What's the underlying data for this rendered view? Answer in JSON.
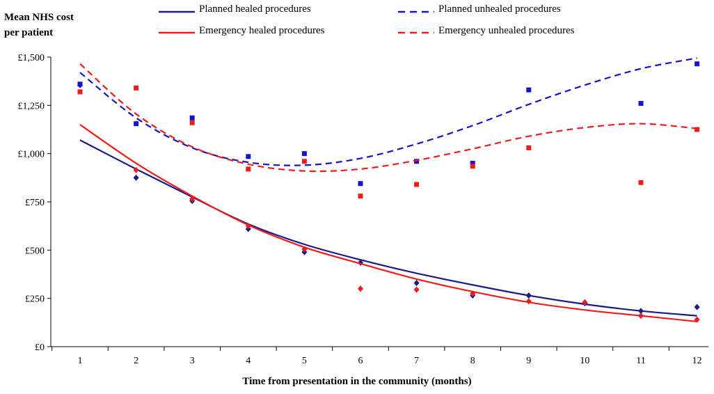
{
  "chart_data": {
    "type": "line",
    "ylabel": "Mean NHS cost\nper patient",
    "xlabel": "Time from presentation in the community (months)",
    "xlim": [
      1,
      12
    ],
    "ylim": [
      0,
      1500
    ],
    "x_ticks": [
      "1",
      "2",
      "3",
      "4",
      "5",
      "6",
      "7",
      "8",
      "9",
      "10",
      "11",
      "12"
    ],
    "y_ticks": [
      {
        "value": 0,
        "label": "£0"
      },
      {
        "value": 250,
        "label": "£250"
      },
      {
        "value": 500,
        "label": "£500"
      },
      {
        "value": 750,
        "label": "£750"
      },
      {
        "value": 1000,
        "label": "£1,000"
      },
      {
        "value": 1250,
        "label": "£1,250"
      },
      {
        "value": 1500,
        "label": "£1,500"
      }
    ],
    "grid": false,
    "legend": "top",
    "x": [
      1,
      2,
      3,
      4,
      5,
      6,
      7,
      8,
      9,
      10,
      11,
      12
    ],
    "series": [
      {
        "name": "Planned healed procedures",
        "color": "#1a1a8c",
        "line_style": "solid",
        "marker": "diamond",
        "points": [
          1355,
          875,
          755,
          610,
          490,
          435,
          330,
          265,
          265,
          225,
          185,
          205
        ],
        "trend": [
          1070,
          920,
          775,
          635,
          530,
          450,
          380,
          320,
          265,
          220,
          185,
          160
        ]
      },
      {
        "name": "Emergency healed procedures",
        "color": "#ee1c1c",
        "line_style": "solid",
        "marker": "diamond",
        "points": [
          null,
          915,
          765,
          625,
          505,
          300,
          295,
          275,
          235,
          230,
          160,
          140
        ],
        "trend": [
          1150,
          950,
          780,
          630,
          515,
          430,
          350,
          285,
          230,
          190,
          160,
          130
        ]
      },
      {
        "name": "Planned unhealed procedures",
        "color": "#1414c8",
        "line_style": "dashed",
        "marker": "square",
        "points": [
          1360,
          1155,
          1185,
          985,
          1000,
          845,
          960,
          950,
          1330,
          null,
          1260,
          1465
        ],
        "trend": [
          1420,
          1185,
          1030,
          955,
          940,
          975,
          1050,
          1145,
          1255,
          1355,
          1440,
          1495
        ]
      },
      {
        "name": "Emergency unhealed procedures",
        "color": "#ee1c1c",
        "line_style": "dashed",
        "marker": "square",
        "points": [
          1320,
          1340,
          1160,
          920,
          960,
          780,
          840,
          935,
          1030,
          null,
          850,
          1125
        ],
        "trend": [
          1465,
          1205,
          1035,
          945,
          910,
          920,
          965,
          1025,
          1090,
          1135,
          1155,
          1130
        ]
      }
    ]
  }
}
